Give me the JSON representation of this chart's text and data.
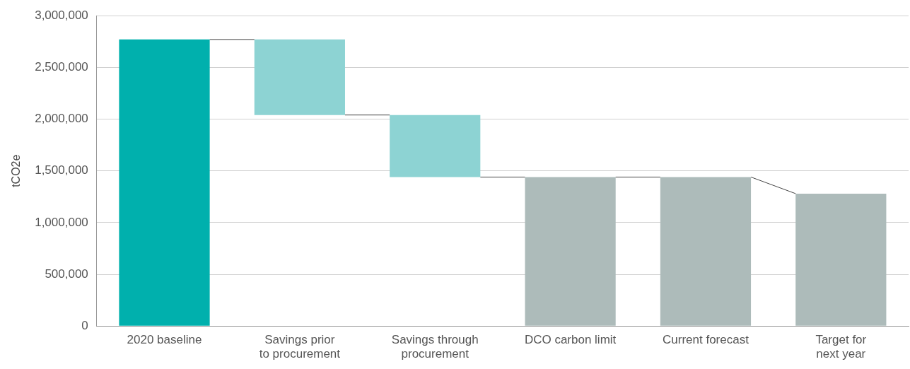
{
  "chart_data": {
    "type": "bar",
    "ylabel": "tCO2e",
    "categories": [
      "2020 baseline",
      "Savings prior\nto procurement",
      "Savings through\nprocurement",
      "DCO carbon limit",
      "Current forecast",
      "Target for\nnext year"
    ],
    "values": [
      2770000,
      -730000,
      -600000,
      1440000,
      1440000,
      1280000
    ],
    "base": [
      0,
      2770000,
      2040000,
      0,
      0,
      0
    ],
    "colors": [
      "#00b0ad",
      "#8dd3d3",
      "#8dd3d3",
      "#adbbba",
      "#adbbba",
      "#adbbba"
    ],
    "ylim": [
      0,
      3000000
    ],
    "yticks": [
      0,
      {
        "value": 500000,
        "label": "500,000"
      },
      {
        "value": 1000000,
        "label": "1,000,000"
      },
      {
        "value": 1500000,
        "label": "1,500,000"
      },
      {
        "value": 2000000,
        "label": "2,000,000"
      },
      {
        "value": 2500000,
        "label": "2,500,000"
      },
      {
        "value": 3000000,
        "label": "3,000,000"
      }
    ],
    "grid": "y",
    "legend": false
  }
}
